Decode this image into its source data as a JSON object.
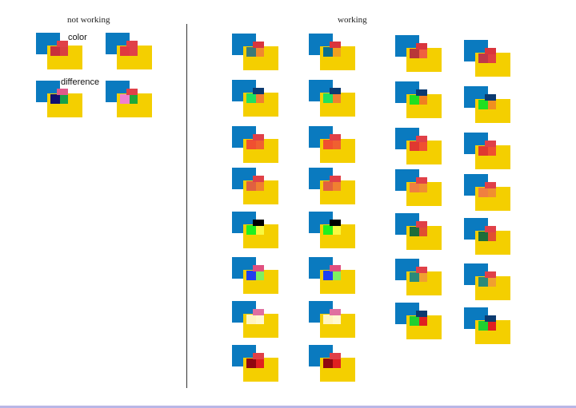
{
  "headings": {
    "not_working": "not working",
    "working": "working"
  },
  "labels": {
    "color": "color",
    "difference": "difference"
  },
  "colors": {
    "blue": "#0a7abf",
    "yellow": "#f4cf00",
    "red": "#e1353c",
    "divider": "#333333",
    "footer_bar": "#b9b6e6"
  },
  "swatch_tiles": [
    {
      "group": "not-working",
      "row": 1,
      "col": 1,
      "top": "#e04048",
      "mid": "#c8303c",
      "base": "#d94040"
    },
    {
      "group": "not-working",
      "row": 1,
      "col": 2,
      "top": "#e04048",
      "mid": "#e03840",
      "base": "#e04048"
    },
    {
      "group": "not-working",
      "row": 2,
      "col": 1,
      "top": "#e05a8a",
      "mid": "#101070",
      "base": "#17a14a"
    },
    {
      "group": "not-working",
      "row": 2,
      "col": 2,
      "top": "#e04048",
      "mid": "#f080d0",
      "base": "#1fa83a"
    },
    {
      "group": "working",
      "row": 1,
      "col": 1,
      "top": "#d9353d",
      "mid": "#3b7a7a",
      "base": "#f08830"
    },
    {
      "group": "working",
      "row": 1,
      "col": 2,
      "top": "#d9353d",
      "mid": "#0b6f8e",
      "base": "#f0a020"
    },
    {
      "group": "working",
      "row": 1,
      "col": 3,
      "top": "#d9353d",
      "mid": "#b83838",
      "base": "#f06040"
    },
    {
      "group": "working",
      "row": 1,
      "col": 4,
      "top": "#d9353d",
      "mid": "#c03848",
      "base": "#e04040"
    },
    {
      "group": "working",
      "row": 2,
      "col": 1,
      "top": "#0b3a70",
      "mid": "#20e060",
      "base": "#f08030"
    },
    {
      "group": "working",
      "row": 2,
      "col": 2,
      "top": "#0b3a70",
      "mid": "#20e060",
      "base": "#f08030"
    },
    {
      "group": "working",
      "row": 2,
      "col": 3,
      "top": "#0b3a70",
      "mid": "#20e020",
      "base": "#f08020"
    },
    {
      "group": "working",
      "row": 2,
      "col": 4,
      "top": "#0b3a70",
      "mid": "#20e020",
      "base": "#f09020"
    },
    {
      "group": "working",
      "row": 3,
      "col": 1,
      "top": "#e04048",
      "mid": "#f05030",
      "base": "#f06030"
    },
    {
      "group": "working",
      "row": 3,
      "col": 2,
      "top": "#e04048",
      "mid": "#f05030",
      "base": "#f06030"
    },
    {
      "group": "working",
      "row": 3,
      "col": 3,
      "top": "#e04048",
      "mid": "#e03830",
      "base": "#f05030"
    },
    {
      "group": "working",
      "row": 3,
      "col": 4,
      "top": "#e04048",
      "mid": "#e03830",
      "base": "#f05030"
    },
    {
      "group": "working",
      "row": 4,
      "col": 1,
      "top": "#e04048",
      "mid": "#e06040",
      "base": "#f08030"
    },
    {
      "group": "working",
      "row": 4,
      "col": 2,
      "top": "#e04048",
      "mid": "#e06040",
      "base": "#f08030"
    },
    {
      "group": "working",
      "row": 4,
      "col": 3,
      "top": "#e04048",
      "mid": "#f08040",
      "base": "#f09030"
    },
    {
      "group": "working",
      "row": 4,
      "col": 4,
      "top": "#e04048",
      "mid": "#f08040",
      "base": "#f09030"
    },
    {
      "group": "working",
      "row": 5,
      "col": 1,
      "top": "#000000",
      "mid": "#20f020",
      "base": "#f8f840"
    },
    {
      "group": "working",
      "row": 5,
      "col": 2,
      "top": "#000000",
      "mid": "#20f020",
      "base": "#f8f840"
    },
    {
      "group": "working",
      "row": 5,
      "col": 3,
      "top": "#e04048",
      "mid": "#1e6e3a",
      "base": "#e05030"
    },
    {
      "group": "working",
      "row": 5,
      "col": 4,
      "top": "#e04048",
      "mid": "#1e6e3a",
      "base": "#e05030"
    },
    {
      "group": "working",
      "row": 6,
      "col": 1,
      "top": "#e05080",
      "mid": "#2040f0",
      "base": "#80f060"
    },
    {
      "group": "working",
      "row": 6,
      "col": 2,
      "top": "#e05080",
      "mid": "#2040f0",
      "base": "#80f060"
    },
    {
      "group": "working",
      "row": 6,
      "col": 3,
      "top": "#e04048",
      "mid": "#2b8a7a",
      "base": "#f0a030"
    },
    {
      "group": "working",
      "row": 6,
      "col": 4,
      "top": "#e04048",
      "mid": "#2b8a7a",
      "base": "#f0a030"
    },
    {
      "group": "working",
      "row": 7,
      "col": 1,
      "top": "#e070a0",
      "mid": "#fff4c0",
      "base": "#fff8d0"
    },
    {
      "group": "working",
      "row": 7,
      "col": 2,
      "top": "#e070a0",
      "mid": "#fff4c0",
      "base": "#fff8d0"
    },
    {
      "group": "working",
      "row": 7,
      "col": 3,
      "top": "#0b3a70",
      "mid": "#20d030",
      "base": "#e02020"
    },
    {
      "group": "working",
      "row": 7,
      "col": 4,
      "top": "#0b3a70",
      "mid": "#20d030",
      "base": "#e02020"
    },
    {
      "group": "working",
      "row": 8,
      "col": 1,
      "top": "#e04048",
      "mid": "#900810",
      "base": "#e02020"
    },
    {
      "group": "working",
      "row": 8,
      "col": 2,
      "top": "#e04048",
      "mid": "#900810",
      "base": "#e02020"
    }
  ]
}
